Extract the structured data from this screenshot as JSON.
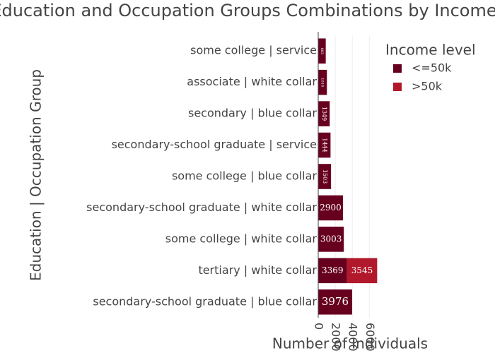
{
  "chart_data": {
    "type": "bar",
    "orientation": "horizontal",
    "barmode": "stack",
    "title": "Education and Occupation Groups Combinations by Income",
    "x_label": "Number of Individuals",
    "y_label": "Education | Occupation Group",
    "legend_title": "Income level",
    "categories": [
      "secondary-school graduate | blue collar",
      "tertiary | white collar",
      "some college | white collar",
      "secondary-school graduate | white collar",
      "some college | blue collar",
      "secondary-school graduate | service",
      "secondary | blue collar",
      "associate | white collar",
      "some college | service"
    ],
    "series": [
      {
        "name": "<=50k",
        "color": "#67001f",
        "values": [
          3976,
          3369,
          3003,
          2900,
          1503,
          1444,
          1349,
          1018,
          883
        ]
      },
      {
        "name": ">50k",
        "color": "#b2182b",
        "values": [
          null,
          3545,
          null,
          null,
          null,
          null,
          null,
          null,
          null
        ]
      }
    ],
    "xlim": [
      0,
      7300
    ],
    "xticks": [
      0,
      2000,
      4000,
      6000
    ],
    "grid": true,
    "legend": "right"
  }
}
